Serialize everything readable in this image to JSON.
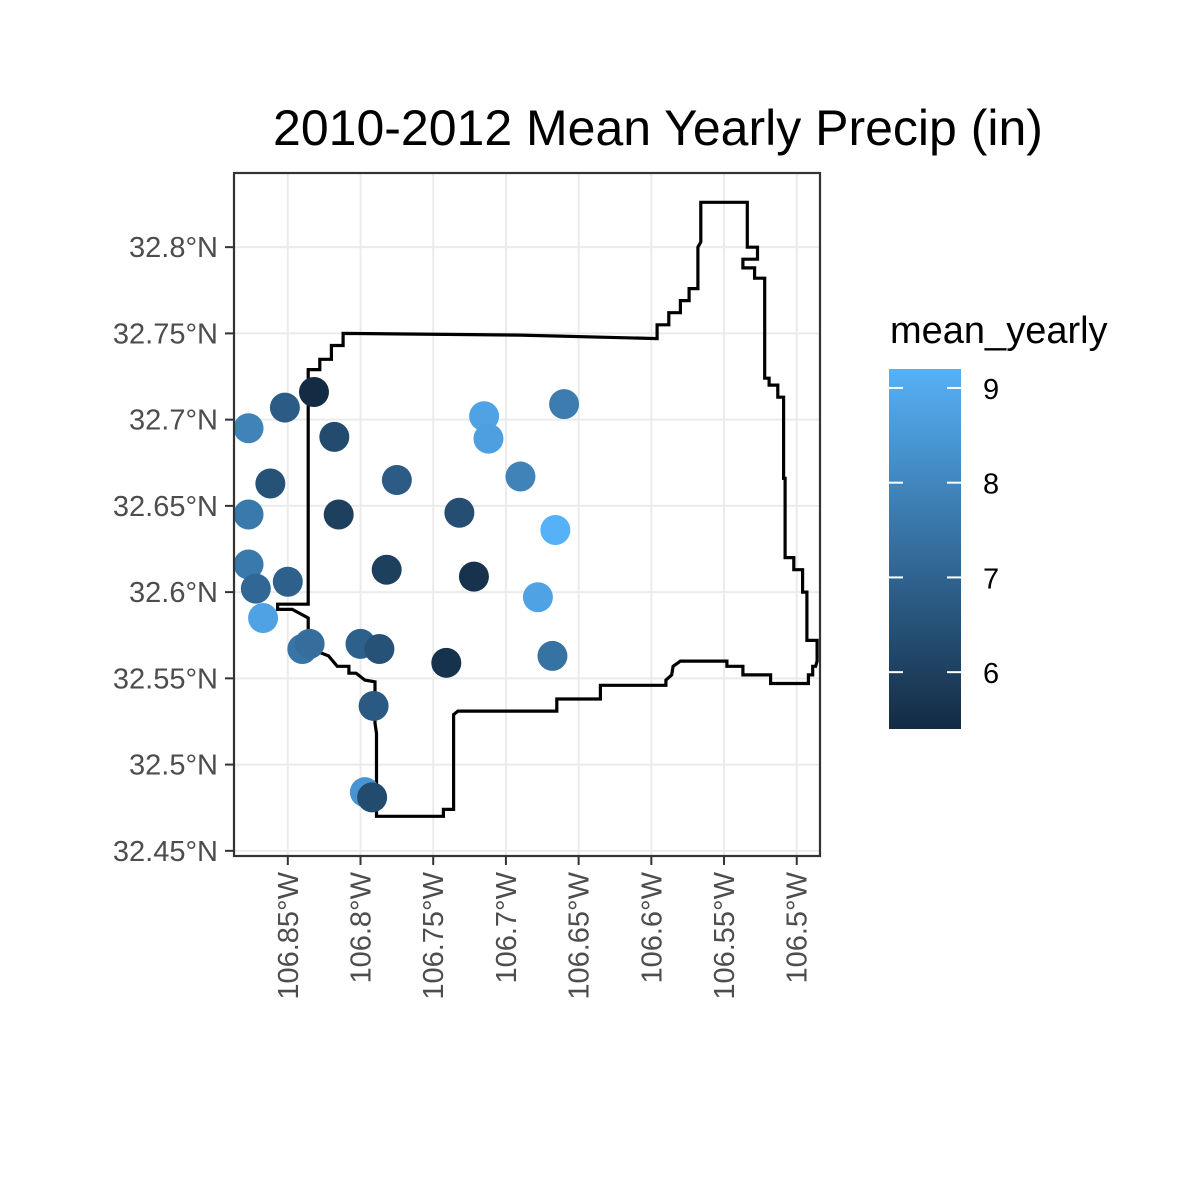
{
  "chart_data": {
    "type": "scatter",
    "title": "2010-2012 Mean Yearly Precip (in)",
    "xlabel": "",
    "ylabel": "",
    "grid": true,
    "xlim": [
      -106.887,
      -106.484
    ],
    "ylim": [
      32.447,
      32.843
    ],
    "x_ticks": [
      {
        "value": -106.85,
        "label": "106.85°W"
      },
      {
        "value": -106.8,
        "label": "106.8°W"
      },
      {
        "value": -106.75,
        "label": "106.75°W"
      },
      {
        "value": -106.7,
        "label": "106.7°W"
      },
      {
        "value": -106.65,
        "label": "106.65°W"
      },
      {
        "value": -106.6,
        "label": "106.6°W"
      },
      {
        "value": -106.55,
        "label": "106.55°W"
      },
      {
        "value": -106.5,
        "label": "106.5°W"
      }
    ],
    "y_ticks": [
      {
        "value": 32.45,
        "label": "32.45°N"
      },
      {
        "value": 32.5,
        "label": "32.5°N"
      },
      {
        "value": 32.55,
        "label": "32.55°N"
      },
      {
        "value": 32.6,
        "label": "32.6°N"
      },
      {
        "value": 32.65,
        "label": "32.65°N"
      },
      {
        "value": 32.7,
        "label": "32.7°N"
      },
      {
        "value": 32.75,
        "label": "32.75°N"
      },
      {
        "value": 32.8,
        "label": "32.8°N"
      }
    ],
    "color_scale": {
      "variable": "mean_yearly",
      "min": 5.4,
      "max": 9.2,
      "low_color": "#132B43",
      "high_color": "#56B1F7",
      "breaks": [
        6,
        7,
        8,
        9
      ],
      "legend_position": "right"
    },
    "boundary": [
      [
        -106.836,
        32.593
      ],
      [
        -106.836,
        32.729
      ],
      [
        -106.828,
        32.729
      ],
      [
        -106.828,
        32.735
      ],
      [
        -106.82,
        32.735
      ],
      [
        -106.82,
        32.743
      ],
      [
        -106.812,
        32.743
      ],
      [
        -106.812,
        32.75
      ],
      [
        -106.69,
        32.749
      ],
      [
        -106.596,
        32.747
      ],
      [
        -106.596,
        32.755
      ],
      [
        -106.588,
        32.755
      ],
      [
        -106.588,
        32.762
      ],
      [
        -106.58,
        32.762
      ],
      [
        -106.58,
        32.769
      ],
      [
        -106.574,
        32.769
      ],
      [
        -106.574,
        32.776
      ],
      [
        -106.568,
        32.776
      ],
      [
        -106.568,
        32.8
      ],
      [
        -106.566,
        32.803
      ],
      [
        -106.566,
        32.826
      ],
      [
        -106.534,
        32.826
      ],
      [
        -106.534,
        32.8
      ],
      [
        -106.527,
        32.8
      ],
      [
        -106.527,
        32.793
      ],
      [
        -106.537,
        32.793
      ],
      [
        -106.537,
        32.788
      ],
      [
        -106.529,
        32.788
      ],
      [
        -106.529,
        32.782
      ],
      [
        -106.522,
        32.782
      ],
      [
        -106.522,
        32.724
      ],
      [
        -106.519,
        32.724
      ],
      [
        -106.519,
        32.72
      ],
      [
        -106.513,
        32.72
      ],
      [
        -106.513,
        32.713
      ],
      [
        -106.509,
        32.713
      ],
      [
        -106.509,
        32.666
      ],
      [
        -106.508,
        32.666
      ],
      [
        -106.508,
        32.62
      ],
      [
        -106.502,
        32.62
      ],
      [
        -106.502,
        32.613
      ],
      [
        -106.496,
        32.613
      ],
      [
        -106.496,
        32.6
      ],
      [
        -106.493,
        32.6
      ],
      [
        -106.493,
        32.572
      ],
      [
        -106.486,
        32.572
      ],
      [
        -106.486,
        32.56
      ],
      [
        -106.487,
        32.557
      ],
      [
        -106.489,
        32.557
      ],
      [
        -106.489,
        32.552
      ],
      [
        -106.492,
        32.552
      ],
      [
        -106.492,
        32.547
      ],
      [
        -106.518,
        32.547
      ],
      [
        -106.518,
        32.552
      ],
      [
        -106.537,
        32.552
      ],
      [
        -106.537,
        32.557
      ],
      [
        -106.548,
        32.557
      ],
      [
        -106.548,
        32.56
      ],
      [
        -106.58,
        32.56
      ],
      [
        -106.585,
        32.557
      ],
      [
        -106.586,
        32.552
      ],
      [
        -106.59,
        32.549
      ],
      [
        -106.59,
        32.546
      ],
      [
        -106.635,
        32.546
      ],
      [
        -106.635,
        32.538
      ],
      [
        -106.665,
        32.538
      ],
      [
        -106.665,
        32.531
      ],
      [
        -106.733,
        32.531
      ],
      [
        -106.736,
        32.529
      ],
      [
        -106.736,
        32.474
      ],
      [
        -106.743,
        32.474
      ],
      [
        -106.743,
        32.47
      ],
      [
        -106.789,
        32.47
      ],
      [
        -106.789,
        32.518
      ],
      [
        -106.79,
        32.524
      ],
      [
        -106.79,
        32.548
      ],
      [
        -106.797,
        32.549
      ],
      [
        -106.803,
        32.553
      ],
      [
        -106.808,
        32.553
      ],
      [
        -106.808,
        32.557
      ],
      [
        -106.816,
        32.557
      ],
      [
        -106.822,
        32.563
      ],
      [
        -106.828,
        32.565
      ],
      [
        -106.829,
        32.569
      ],
      [
        -106.833,
        32.569
      ],
      [
        -106.833,
        32.575
      ],
      [
        -106.836,
        32.575
      ],
      [
        -106.836,
        32.585
      ],
      [
        -106.847,
        32.59
      ],
      [
        -106.857,
        32.59
      ],
      [
        -106.857,
        32.593
      ]
    ],
    "points": [
      {
        "x": -106.832,
        "y": 32.716,
        "value": 5.4
      },
      {
        "x": -106.852,
        "y": 32.707,
        "value": 6.8
      },
      {
        "x": -106.877,
        "y": 32.695,
        "value": 7.9
      },
      {
        "x": -106.818,
        "y": 32.69,
        "value": 6.3
      },
      {
        "x": -106.862,
        "y": 32.663,
        "value": 6.5
      },
      {
        "x": -106.775,
        "y": 32.665,
        "value": 6.8
      },
      {
        "x": -106.715,
        "y": 32.702,
        "value": 8.8
      },
      {
        "x": -106.712,
        "y": 32.689,
        "value": 8.7
      },
      {
        "x": -106.66,
        "y": 32.709,
        "value": 7.7
      },
      {
        "x": -106.69,
        "y": 32.667,
        "value": 7.9
      },
      {
        "x": -106.877,
        "y": 32.645,
        "value": 7.6
      },
      {
        "x": -106.815,
        "y": 32.645,
        "value": 6.0
      },
      {
        "x": -106.732,
        "y": 32.646,
        "value": 6.4
      },
      {
        "x": -106.666,
        "y": 32.636,
        "value": 9.2
      },
      {
        "x": -106.877,
        "y": 32.616,
        "value": 7.6
      },
      {
        "x": -106.85,
        "y": 32.606,
        "value": 6.9
      },
      {
        "x": -106.782,
        "y": 32.613,
        "value": 6.0
      },
      {
        "x": -106.722,
        "y": 32.609,
        "value": 5.6
      },
      {
        "x": -106.678,
        "y": 32.597,
        "value": 8.8
      },
      {
        "x": -106.872,
        "y": 32.602,
        "value": 7.1
      },
      {
        "x": -106.867,
        "y": 32.585,
        "value": 8.8
      },
      {
        "x": -106.84,
        "y": 32.567,
        "value": 7.5
      },
      {
        "x": -106.835,
        "y": 32.57,
        "value": 7.3
      },
      {
        "x": -106.8,
        "y": 32.57,
        "value": 6.9
      },
      {
        "x": -106.787,
        "y": 32.567,
        "value": 6.5
      },
      {
        "x": -106.741,
        "y": 32.559,
        "value": 5.6
      },
      {
        "x": -106.668,
        "y": 32.563,
        "value": 7.4
      },
      {
        "x": -106.791,
        "y": 32.534,
        "value": 6.7
      },
      {
        "x": -106.797,
        "y": 32.484,
        "value": 8.4
      },
      {
        "x": -106.792,
        "y": 32.481,
        "value": 6.3
      }
    ]
  }
}
